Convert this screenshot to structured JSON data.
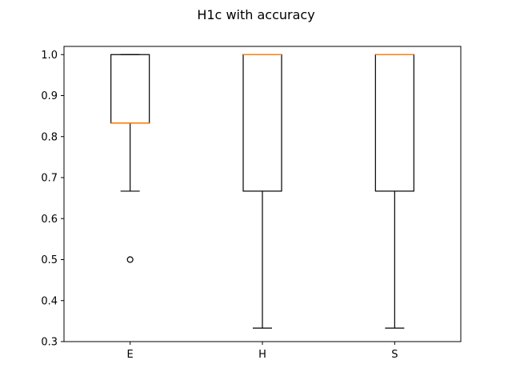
{
  "chart_data": {
    "type": "box",
    "title": "H1c with accuracy",
    "xlabel": "",
    "ylabel": "",
    "ylim": [
      0.3,
      1.02
    ],
    "yticks": [
      0.3,
      0.4,
      0.5,
      0.6,
      0.7,
      0.8,
      0.9,
      1.0
    ],
    "ytick_labels": [
      "0.3",
      "0.4",
      "0.5",
      "0.6",
      "0.7",
      "0.8",
      "0.9",
      "1.0"
    ],
    "categories": [
      "E",
      "H",
      "S"
    ],
    "boxes": [
      {
        "name": "E",
        "whisker_low": 0.667,
        "q1": 0.833,
        "median": 0.833,
        "q3": 1.0,
        "whisker_high": 1.0,
        "outliers": [
          0.5
        ]
      },
      {
        "name": "H",
        "whisker_low": 0.333,
        "q1": 0.667,
        "median": 1.0,
        "q3": 1.0,
        "whisker_high": 1.0,
        "outliers": []
      },
      {
        "name": "S",
        "whisker_low": 0.333,
        "q1": 0.667,
        "median": 1.0,
        "q3": 1.0,
        "whisker_high": 1.0,
        "outliers": []
      }
    ],
    "colors": {
      "box": "#000000",
      "median": "#ff7f0e",
      "frame": "#000000"
    },
    "grid": false
  }
}
